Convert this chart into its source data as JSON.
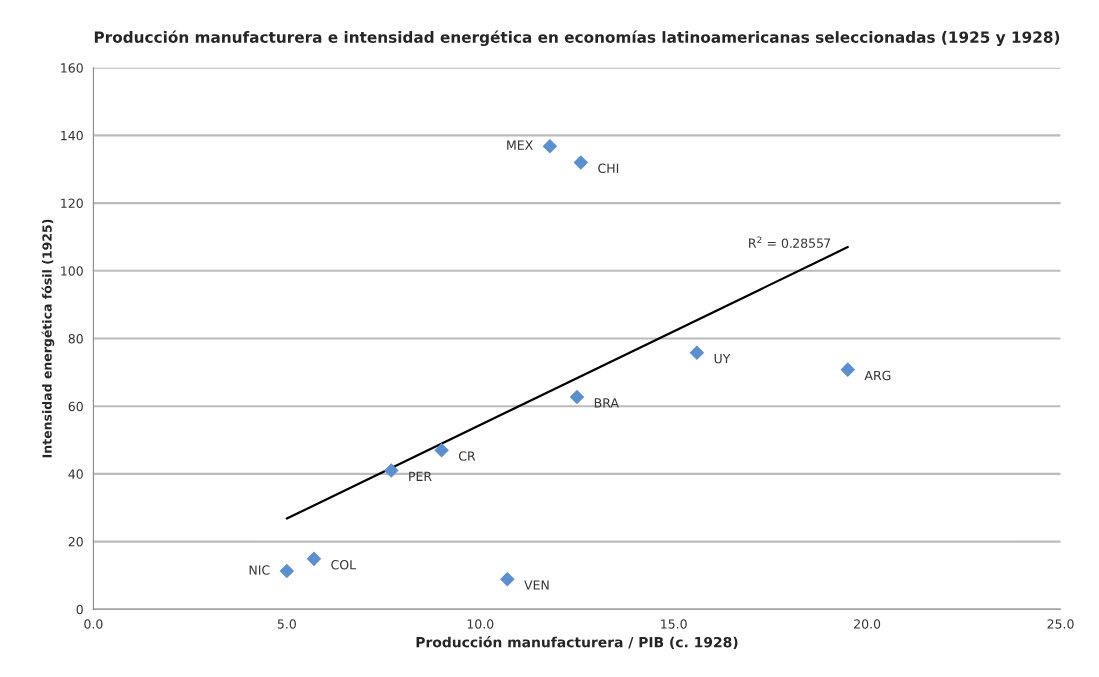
{
  "chart_data": {
    "type": "scatter",
    "title": "Producción manufacturera e intensidad energética en economías latinoamericanas seleccionadas (1925 y 1928)",
    "xlabel": "Producción manufacturera / PIB (c. 1928)",
    "ylabel": "Intensidad energética fósil (1925)",
    "x": [
      11.8,
      12.6,
      12.5,
      9.0,
      7.7,
      15.6,
      19.5,
      5.7,
      5.0,
      10.7
    ],
    "series": [
      {
        "color": "#5b8fcf",
        "marker": "diamond",
        "values": [
          136.8,
          132,
          62.7,
          47,
          41,
          75.8,
          70.8,
          14.9,
          11.3,
          8.9
        ]
      },
      {
        "type": "line",
        "color": "#000000",
        "x": [
          5.0,
          19.5
        ],
        "values": [
          26.8,
          107
        ],
        "marker": "none",
        "line_style": "solid"
      }
    ],
    "annotations": [
      {
        "text": "MEX",
        "x": 11.8,
        "y": 136.8
      },
      {
        "text": "CHI",
        "x": 12.6,
        "y": 132
      },
      {
        "text": "BRA",
        "x": 12.5,
        "y": 62.7
      },
      {
        "text": "CR",
        "x": 9.0,
        "y": 47
      },
      {
        "text": "PER",
        "x": 7.7,
        "y": 41
      },
      {
        "text": "UY",
        "x": 15.6,
        "y": 75.8
      },
      {
        "text": "ARG",
        "x": 19.5,
        "y": 70.8
      },
      {
        "text": "COL",
        "x": 5.7,
        "y": 14.9
      },
      {
        "text": "NIC",
        "x": 5.0,
        "y": 11.3
      },
      {
        "text": "VEN",
        "x": 10.7,
        "y": 8.9
      },
      {
        "text": "R$^{2}$ = 0.28557",
        "x": 19.5,
        "y": 107
      }
    ],
    "xlim": [
      0,
      25
    ],
    "xticks": [
      {
        "value": 0,
        "label": "0.0"
      },
      {
        "value": 5,
        "label": "5.0"
      },
      {
        "value": 10,
        "label": "10.0"
      },
      {
        "value": 15,
        "label": "15.0"
      },
      {
        "value": 20,
        "label": "20.0"
      },
      {
        "value": 25,
        "label": "25.0"
      }
    ],
    "ylim": [
      0,
      160
    ],
    "yticks": [
      0,
      20,
      40,
      60,
      80,
      100,
      120,
      140,
      160
    ],
    "grid": "y",
    "legend": false
  }
}
